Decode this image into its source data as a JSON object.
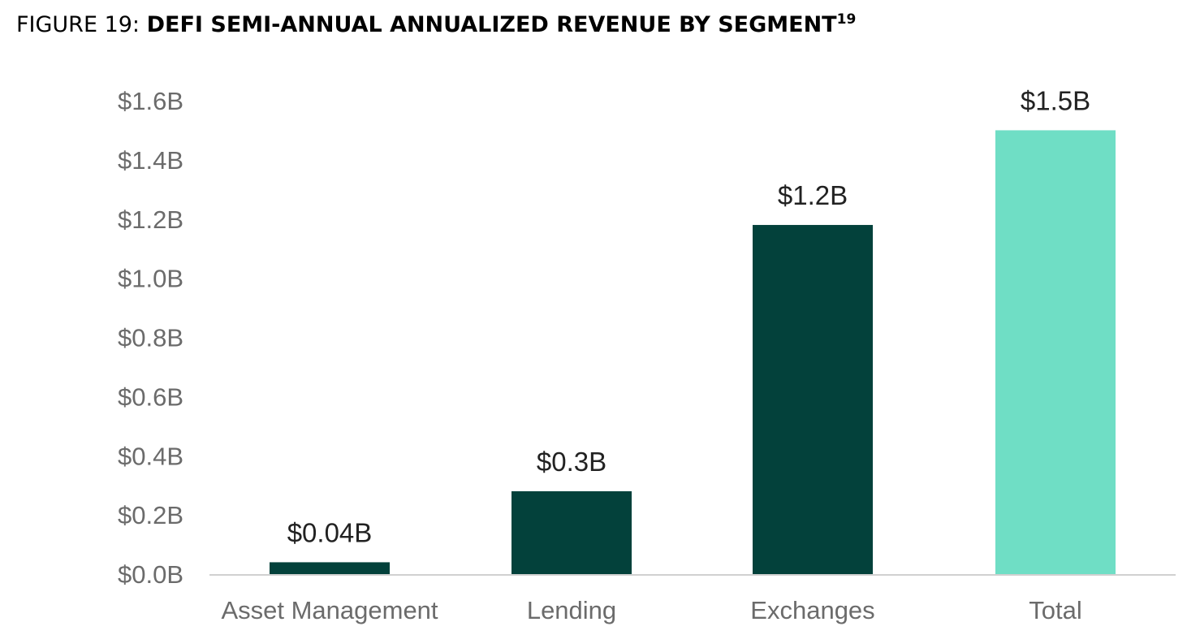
{
  "figure": {
    "label": "FIGURE 19: ",
    "title": "DEFI SEMI-ANNUAL ANNUALIZED REVENUE BY SEGMENT",
    "footnote": "19"
  },
  "colors": {
    "bar_dark": "#03413b",
    "bar_highlight": "#6fdec5",
    "axis_text": "#6b6b6b",
    "data_label": "#222222",
    "baseline": "#d0d0d0"
  },
  "chart_data": {
    "type": "bar",
    "title": "DEFI SEMI-ANNUAL ANNUALIZED REVENUE BY SEGMENT",
    "xlabel": "",
    "ylabel": "",
    "categories": [
      "Asset Management",
      "Lending",
      "Exchanges",
      "Total"
    ],
    "values": [
      0.04,
      0.28,
      1.18,
      1.5
    ],
    "data_labels": [
      "$0.04B",
      "$0.3B",
      "$1.2B",
      "$1.5B"
    ],
    "highlight": [
      false,
      false,
      false,
      true
    ],
    "ylim": [
      0,
      1.6
    ],
    "yticks": [
      0,
      0.2,
      0.4,
      0.6,
      0.8,
      1.0,
      1.2,
      1.4,
      1.6
    ],
    "ytick_labels": [
      "$0.0B",
      "$0.2B",
      "$0.4B",
      "$0.6B",
      "$0.8B",
      "$1.0B",
      "$1.2B",
      "$1.4B",
      "$1.6B"
    ],
    "grid": false,
    "legend": "none"
  }
}
